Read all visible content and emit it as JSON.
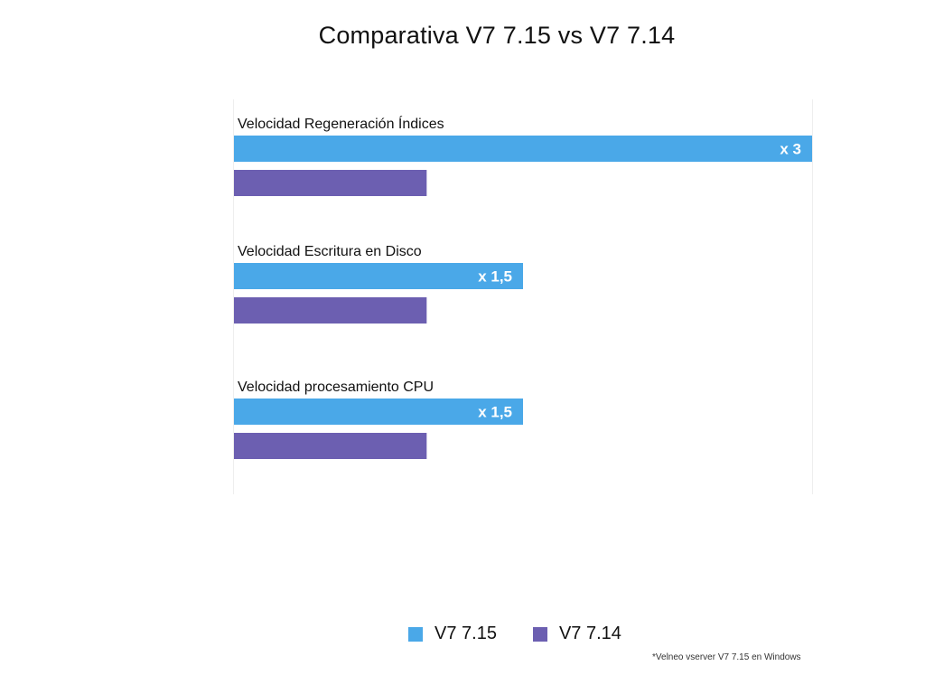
{
  "chart_data": {
    "type": "bar",
    "orientation": "horizontal",
    "title": "Comparativa V7 7.15 vs V7 7.14",
    "categories": [
      "Velocidad Regeneración Índices",
      "Velocidad Escritura en Disco",
      "Velocidad procesamiento CPU"
    ],
    "series": [
      {
        "name": "V7 7.15",
        "color": "#4aa8e8",
        "values": [
          3,
          1.5,
          1.5
        ],
        "labels": [
          "x 3",
          "x 1,5",
          "x 1,5"
        ]
      },
      {
        "name": "V7 7.14",
        "color": "#6c5fb1",
        "values": [
          1,
          1,
          1
        ],
        "labels": [
          "",
          "",
          ""
        ]
      }
    ],
    "xlim": [
      0,
      3
    ],
    "grid": false,
    "legend_position": "bottom",
    "footnote": "*Velneo vserver V7 7.15 en Windows"
  }
}
